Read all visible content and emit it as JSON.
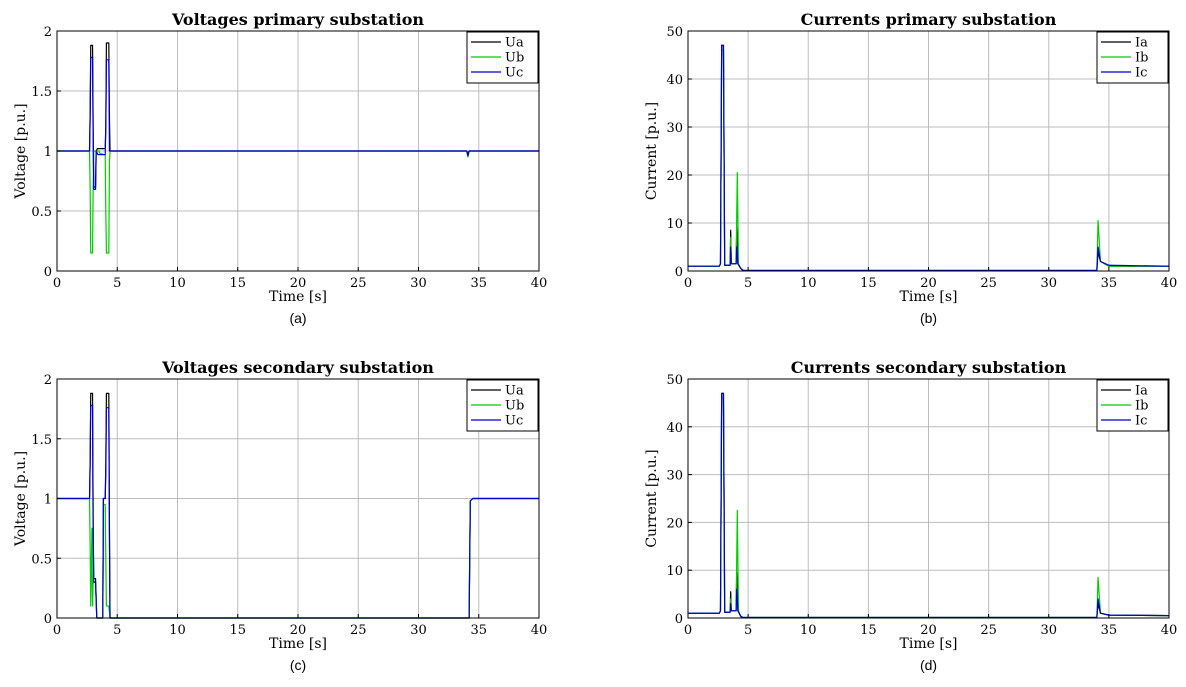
{
  "colors": {
    "phase_a": "#000000",
    "phase_b": "#00cc00",
    "phase_c": "#0000cc",
    "grid": "#bdbdbd",
    "axes": "#000000"
  },
  "chart_data": [
    {
      "type": "line",
      "id": "a",
      "caption": "(a)",
      "title": "Voltages primary substation",
      "xlabel": "Time [s]",
      "ylabel": "Voltage [p.u.]",
      "xlim": [
        0,
        40
      ],
      "ylim": [
        0,
        2
      ],
      "xticks": [
        0,
        5,
        10,
        15,
        20,
        25,
        30,
        35,
        40
      ],
      "yticks": [
        0,
        0.5,
        1,
        1.5,
        2
      ],
      "ytick_labels": [
        "0",
        "0.5",
        "1",
        "1.5",
        "2"
      ],
      "grid": true,
      "legend": "top-right",
      "series": [
        {
          "name": "Ua",
          "color": "#000000",
          "points": [
            [
              0,
              1
            ],
            [
              2.7,
              1
            ],
            [
              2.75,
              1.3
            ],
            [
              2.8,
              1.88
            ],
            [
              2.95,
              1.88
            ],
            [
              3.0,
              1.2
            ],
            [
              3.05,
              0.7
            ],
            [
              3.2,
              0.7
            ],
            [
              3.25,
              1.0
            ],
            [
              3.35,
              1.02
            ],
            [
              4.0,
              1.02
            ],
            [
              4.05,
              1.2
            ],
            [
              4.1,
              1.9
            ],
            [
              4.3,
              1.9
            ],
            [
              4.35,
              1.3
            ],
            [
              4.4,
              1.0
            ],
            [
              34,
              1
            ],
            [
              34.1,
              0.98
            ],
            [
              34.2,
              1.0
            ],
            [
              40,
              1
            ]
          ]
        },
        {
          "name": "Ub",
          "color": "#00cc00",
          "points": [
            [
              0,
              1
            ],
            [
              2.7,
              1
            ],
            [
              2.75,
              0.7
            ],
            [
              2.8,
              0.15
            ],
            [
              2.95,
              0.15
            ],
            [
              3.0,
              0.7
            ],
            [
              3.05,
              1.0
            ],
            [
              3.5,
              1.0
            ],
            [
              3.55,
              0.98
            ],
            [
              3.9,
              0.97
            ],
            [
              4.0,
              0.97
            ],
            [
              4.05,
              0.5
            ],
            [
              4.1,
              0.15
            ],
            [
              4.3,
              0.15
            ],
            [
              4.35,
              0.9
            ],
            [
              4.4,
              1.0
            ],
            [
              34,
              1
            ],
            [
              34.1,
              0.95
            ],
            [
              34.2,
              1.0
            ],
            [
              40,
              1
            ]
          ]
        },
        {
          "name": "Uc",
          "color": "#0000cc",
          "points": [
            [
              0,
              1
            ],
            [
              2.7,
              1
            ],
            [
              2.75,
              1.3
            ],
            [
              2.8,
              1.78
            ],
            [
              2.95,
              1.78
            ],
            [
              3.0,
              1.1
            ],
            [
              3.05,
              0.68
            ],
            [
              3.2,
              0.68
            ],
            [
              3.25,
              1.0
            ],
            [
              3.4,
              0.97
            ],
            [
              3.9,
              0.97
            ],
            [
              4.0,
              0.97
            ],
            [
              4.05,
              1.2
            ],
            [
              4.1,
              1.76
            ],
            [
              4.3,
              1.76
            ],
            [
              4.35,
              1.0
            ],
            [
              4.4,
              1.0
            ],
            [
              34,
              1
            ],
            [
              34.1,
              0.96
            ],
            [
              34.2,
              1.0
            ],
            [
              40,
              1
            ]
          ]
        }
      ]
    },
    {
      "type": "line",
      "id": "b",
      "caption": "(b)",
      "title": "Currents primary substation",
      "xlabel": "Time [s]",
      "ylabel": "Current [p.u.]",
      "xlim": [
        0,
        40
      ],
      "ylim": [
        0,
        50
      ],
      "xticks": [
        0,
        5,
        10,
        15,
        20,
        25,
        30,
        35,
        40
      ],
      "yticks": [
        0,
        10,
        20,
        30,
        40,
        50
      ],
      "ytick_labels": [
        "0",
        "10",
        "20",
        "30",
        "40",
        "50"
      ],
      "grid": true,
      "legend": "top-right",
      "series": [
        {
          "name": "Ia",
          "color": "#000000",
          "points": [
            [
              0,
              1
            ],
            [
              2.6,
              1
            ],
            [
              2.7,
              1.5
            ],
            [
              2.8,
              47
            ],
            [
              2.95,
              47
            ],
            [
              3.05,
              1.2
            ],
            [
              3.5,
              1.2
            ],
            [
              3.55,
              8.5
            ],
            [
              3.6,
              1.5
            ],
            [
              4.0,
              1.5
            ],
            [
              4.05,
              9
            ],
            [
              4.15,
              1.5
            ],
            [
              4.4,
              0.5
            ],
            [
              4.6,
              0.1
            ],
            [
              34,
              0.1
            ],
            [
              34.1,
              4
            ],
            [
              34.3,
              2
            ],
            [
              35,
              1
            ],
            [
              40,
              1
            ]
          ]
        },
        {
          "name": "Ib",
          "color": "#00cc00",
          "points": [
            [
              0,
              1
            ],
            [
              2.6,
              1
            ],
            [
              2.7,
              1.5
            ],
            [
              2.8,
              46
            ],
            [
              2.95,
              46
            ],
            [
              3.05,
              1.2
            ],
            [
              3.5,
              1.2
            ],
            [
              3.55,
              7
            ],
            [
              3.6,
              1.5
            ],
            [
              4.0,
              1.5
            ],
            [
              4.1,
              20.5
            ],
            [
              4.2,
              1.5
            ],
            [
              4.4,
              0.5
            ],
            [
              4.6,
              0.1
            ],
            [
              34,
              0.1
            ],
            [
              34.1,
              10.5
            ],
            [
              34.3,
              2
            ],
            [
              35,
              1
            ],
            [
              40,
              1
            ]
          ]
        },
        {
          "name": "Ic",
          "color": "#0000cc",
          "points": [
            [
              0,
              1
            ],
            [
              2.6,
              1
            ],
            [
              2.7,
              1.5
            ],
            [
              2.8,
              47
            ],
            [
              2.95,
              47
            ],
            [
              3.05,
              1.2
            ],
            [
              3.5,
              1.2
            ],
            [
              3.55,
              5
            ],
            [
              3.6,
              1.5
            ],
            [
              4.0,
              1.5
            ],
            [
              4.05,
              5
            ],
            [
              4.15,
              1.5
            ],
            [
              4.4,
              0.5
            ],
            [
              4.6,
              0.1
            ],
            [
              34,
              0.1
            ],
            [
              34.1,
              5
            ],
            [
              34.3,
              2
            ],
            [
              35,
              1.2
            ],
            [
              40,
              1
            ]
          ]
        }
      ]
    },
    {
      "type": "line",
      "id": "c",
      "caption": "(c)",
      "title": "Voltages secondary substation",
      "xlabel": "Time [s]",
      "ylabel": "Voltage [p.u.]",
      "xlim": [
        0,
        40
      ],
      "ylim": [
        0,
        2
      ],
      "xticks": [
        0,
        5,
        10,
        15,
        20,
        25,
        30,
        35,
        40
      ],
      "yticks": [
        0,
        0.5,
        1,
        1.5,
        2
      ],
      "ytick_labels": [
        "0",
        "0.5",
        "1",
        "1.5",
        "2"
      ],
      "grid": true,
      "legend": "top-right",
      "series": [
        {
          "name": "Ua",
          "color": "#000000",
          "points": [
            [
              0,
              1
            ],
            [
              2.7,
              1
            ],
            [
              2.75,
              1.3
            ],
            [
              2.8,
              1.88
            ],
            [
              2.95,
              1.88
            ],
            [
              3.0,
              0.8
            ],
            [
              3.05,
              0.33
            ],
            [
              3.2,
              0.33
            ],
            [
              3.3,
              0
            ],
            [
              3.8,
              0
            ],
            [
              3.85,
              1.0
            ],
            [
              4.0,
              1.0
            ],
            [
              4.05,
              1.3
            ],
            [
              4.1,
              1.88
            ],
            [
              4.3,
              1.88
            ],
            [
              4.35,
              0.8
            ],
            [
              4.4,
              0
            ],
            [
              34.2,
              0
            ],
            [
              34.3,
              0.98
            ],
            [
              34.5,
              1.0
            ],
            [
              40,
              1
            ]
          ]
        },
        {
          "name": "Ub",
          "color": "#00cc00",
          "points": [
            [
              0,
              1
            ],
            [
              2.7,
              1
            ],
            [
              2.75,
              0.6
            ],
            [
              2.8,
              0.1
            ],
            [
              2.9,
              0.75
            ],
            [
              2.95,
              0.1
            ],
            [
              3.0,
              0.3
            ],
            [
              3.2,
              0.3
            ],
            [
              3.3,
              0
            ],
            [
              3.8,
              0
            ],
            [
              3.85,
              0.95
            ],
            [
              4.0,
              0.95
            ],
            [
              4.05,
              0.5
            ],
            [
              4.1,
              0.1
            ],
            [
              4.3,
              0.1
            ],
            [
              4.4,
              0
            ],
            [
              34.2,
              0
            ],
            [
              34.3,
              0.98
            ],
            [
              34.5,
              1.0
            ],
            [
              40,
              1
            ]
          ]
        },
        {
          "name": "Uc",
          "color": "#0000cc",
          "points": [
            [
              0,
              1
            ],
            [
              2.7,
              1
            ],
            [
              2.75,
              1.3
            ],
            [
              2.8,
              1.78
            ],
            [
              2.95,
              1.78
            ],
            [
              3.0,
              0.7
            ],
            [
              3.05,
              0.3
            ],
            [
              3.2,
              0.3
            ],
            [
              3.3,
              0
            ],
            [
              3.8,
              0
            ],
            [
              3.85,
              1.0
            ],
            [
              4.0,
              1.0
            ],
            [
              4.05,
              1.2
            ],
            [
              4.1,
              1.76
            ],
            [
              4.3,
              1.76
            ],
            [
              4.35,
              0.7
            ],
            [
              4.4,
              0
            ],
            [
              34.2,
              0
            ],
            [
              34.3,
              0.98
            ],
            [
              34.5,
              1.0
            ],
            [
              40,
              1
            ]
          ]
        }
      ]
    },
    {
      "type": "line",
      "id": "d",
      "caption": "(d)",
      "title": "Currents secondary substation",
      "xlabel": "Time [s]",
      "ylabel": "Current [p.u.]",
      "xlim": [
        0,
        40
      ],
      "ylim": [
        0,
        50
      ],
      "xticks": [
        0,
        5,
        10,
        15,
        20,
        25,
        30,
        35,
        40
      ],
      "yticks": [
        0,
        10,
        20,
        30,
        40,
        50
      ],
      "ytick_labels": [
        "0",
        "10",
        "20",
        "30",
        "40",
        "50"
      ],
      "grid": true,
      "legend": "top-right",
      "series": [
        {
          "name": "Ia",
          "color": "#000000",
          "points": [
            [
              0,
              1
            ],
            [
              2.6,
              1
            ],
            [
              2.7,
              1.5
            ],
            [
              2.8,
              47
            ],
            [
              2.95,
              47
            ],
            [
              3.05,
              1.2
            ],
            [
              3.5,
              1.2
            ],
            [
              3.55,
              5.5
            ],
            [
              3.6,
              1.5
            ],
            [
              4.0,
              1.5
            ],
            [
              4.05,
              9.5
            ],
            [
              4.15,
              1.5
            ],
            [
              4.4,
              0.3
            ],
            [
              4.6,
              0.1
            ],
            [
              34,
              0.1
            ],
            [
              34.1,
              3
            ],
            [
              34.3,
              1
            ],
            [
              35,
              0.6
            ],
            [
              40,
              0.5
            ]
          ]
        },
        {
          "name": "Ib",
          "color": "#00cc00",
          "points": [
            [
              0,
              1
            ],
            [
              2.6,
              1
            ],
            [
              2.7,
              1.5
            ],
            [
              2.8,
              46
            ],
            [
              2.95,
              46
            ],
            [
              3.05,
              1.2
            ],
            [
              3.5,
              1.2
            ],
            [
              3.55,
              4
            ],
            [
              3.6,
              1.5
            ],
            [
              4.0,
              1.5
            ],
            [
              4.1,
              22.5
            ],
            [
              4.2,
              1.5
            ],
            [
              4.4,
              0.3
            ],
            [
              4.6,
              0.1
            ],
            [
              34,
              0.1
            ],
            [
              34.1,
              8.5
            ],
            [
              34.3,
              1
            ],
            [
              35,
              0.6
            ],
            [
              40,
              0.5
            ]
          ]
        },
        {
          "name": "Ic",
          "color": "#0000cc",
          "points": [
            [
              0,
              1
            ],
            [
              2.6,
              1
            ],
            [
              2.7,
              1.5
            ],
            [
              2.8,
              47
            ],
            [
              2.95,
              47
            ],
            [
              3.05,
              1.2
            ],
            [
              3.5,
              1.2
            ],
            [
              3.55,
              3
            ],
            [
              3.6,
              1.5
            ],
            [
              4.0,
              1.5
            ],
            [
              4.05,
              6
            ],
            [
              4.15,
              1.5
            ],
            [
              4.4,
              0.3
            ],
            [
              4.6,
              0.1
            ],
            [
              34,
              0.1
            ],
            [
              34.1,
              4
            ],
            [
              34.3,
              1
            ],
            [
              35,
              0.6
            ],
            [
              40,
              0.5
            ]
          ]
        }
      ]
    }
  ]
}
